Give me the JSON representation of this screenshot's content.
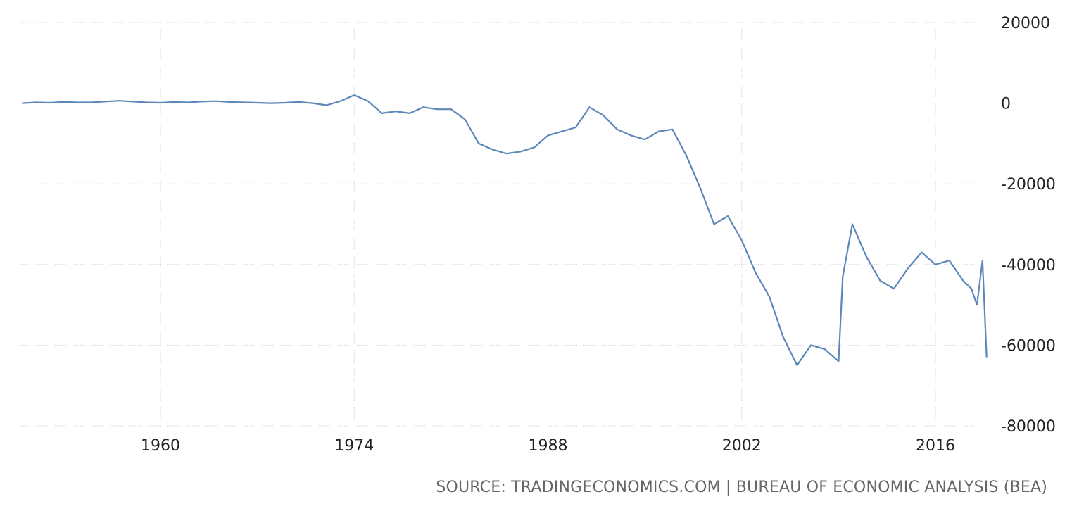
{
  "source": "SOURCE: TRADINGECONOMICS.COM | BUREAU OF ECONOMIC ANALYSIS (BEA)",
  "colors": {
    "line": "#5b87b9",
    "grid": "#cfcfcf",
    "axis_text": "#222222",
    "source_text": "#666666"
  },
  "chart_data": {
    "type": "line",
    "title": "",
    "xlabel": "",
    "ylabel": "",
    "xlim": [
      1950,
      2020
    ],
    "ylim": [
      -80000,
      20000
    ],
    "x_ticks": [
      1960,
      1974,
      1988,
      2002,
      2016
    ],
    "x_tick_labels": [
      "1960",
      "1974",
      "1988",
      "2002",
      "2016"
    ],
    "y_ticks": [
      20000,
      0,
      -20000,
      -40000,
      -60000,
      -80000
    ],
    "y_tick_labels": [
      "20000",
      "0",
      "-20000",
      "-40000",
      "-60000",
      "-80000"
    ],
    "y_axis_position": "right",
    "grid": "dotted",
    "legend": "none",
    "series": [
      {
        "x": [
          1950,
          1951,
          1952,
          1953,
          1954,
          1955,
          1956,
          1957,
          1958,
          1959,
          1960,
          1961,
          1962,
          1963,
          1964,
          1965,
          1966,
          1967,
          1968,
          1969,
          1970,
          1971,
          1972,
          1973,
          1974,
          1975,
          1976,
          1977,
          1978,
          1979,
          1980,
          1981,
          1982,
          1983,
          1984,
          1985,
          1986,
          1987,
          1988,
          1989,
          1990,
          1991,
          1992,
          1993,
          1994,
          1995,
          1996,
          1997,
          1998,
          1999,
          2000,
          2001,
          2002,
          2003,
          2004,
          2005,
          2006,
          2007,
          2008,
          2009,
          2009.3,
          2010,
          2011,
          2012,
          2013,
          2014,
          2015,
          2016,
          2017,
          2018,
          2018.6,
          2019,
          2019.4,
          2019.7
        ],
        "y": [
          0,
          200,
          100,
          300,
          200,
          200,
          400,
          600,
          400,
          200,
          100,
          300,
          200,
          400,
          500,
          300,
          200,
          100,
          0,
          100,
          300,
          0,
          -500,
          500,
          2000,
          500,
          -2500,
          -2000,
          -2500,
          -1000,
          -1500,
          -1500,
          -4000,
          -10000,
          -11500,
          -12500,
          -12000,
          -11000,
          -8000,
          -7000,
          -6000,
          -1000,
          -3000,
          -6500,
          -8000,
          -9000,
          -7000,
          -6500,
          -13000,
          -21000,
          -30000,
          -28000,
          -34000,
          -42000,
          -48000,
          -58000,
          -65000,
          -60000,
          -61000,
          -64000,
          -43000,
          -30000,
          -38000,
          -44000,
          -46000,
          -41000,
          -37000,
          -40000,
          -39000,
          -44000,
          -46000,
          -50000,
          -39000,
          -63000
        ]
      }
    ]
  }
}
